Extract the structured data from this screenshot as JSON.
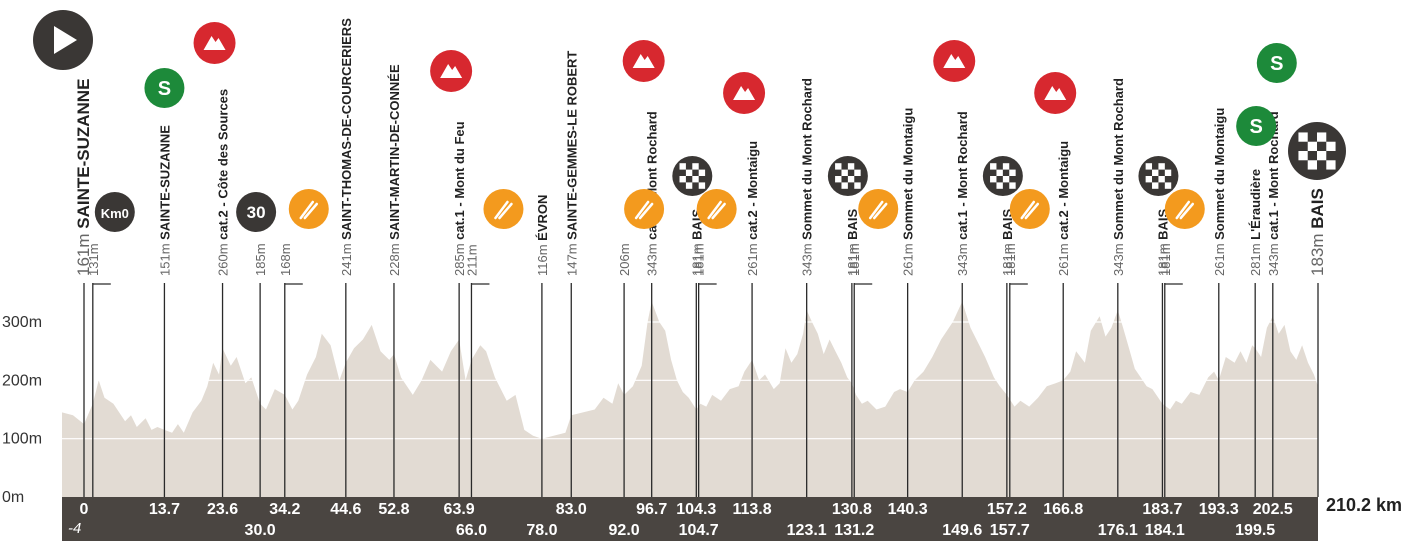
{
  "chart_data": {
    "type": "area",
    "ylim": [
      0,
      360
    ],
    "xlim": [
      -4,
      210.2
    ],
    "yticks": [
      {
        "v": 0,
        "label": "0m"
      },
      {
        "v": 100,
        "label": "100m"
      },
      {
        "v": 200,
        "label": "200m"
      },
      {
        "v": 300,
        "label": "300m"
      }
    ],
    "total_label": "210.2 km",
    "neutral_start_label": "-4",
    "profile": [
      [
        -4,
        145
      ],
      [
        -2,
        140
      ],
      [
        0,
        125
      ],
      [
        1.5,
        160
      ],
      [
        2.5,
        200
      ],
      [
        3.5,
        170
      ],
      [
        5,
        160
      ],
      [
        7,
        130
      ],
      [
        8,
        140
      ],
      [
        9,
        120
      ],
      [
        10.5,
        135
      ],
      [
        11.5,
        115
      ],
      [
        12.5,
        120
      ],
      [
        13.7,
        115
      ],
      [
        15,
        110
      ],
      [
        16,
        125
      ],
      [
        17,
        110
      ],
      [
        18.5,
        145
      ],
      [
        20,
        165
      ],
      [
        21,
        190
      ],
      [
        22,
        230
      ],
      [
        23,
        210
      ],
      [
        23.6,
        255
      ],
      [
        25,
        225
      ],
      [
        26,
        240
      ],
      [
        27.5,
        195
      ],
      [
        28.5,
        205
      ],
      [
        30,
        160
      ],
      [
        31,
        150
      ],
      [
        32.5,
        185
      ],
      [
        34.2,
        175
      ],
      [
        35.5,
        150
      ],
      [
        36.5,
        165
      ],
      [
        38,
        210
      ],
      [
        39.5,
        240
      ],
      [
        40.5,
        280
      ],
      [
        42,
        260
      ],
      [
        43.5,
        200
      ],
      [
        44.6,
        230
      ],
      [
        46,
        255
      ],
      [
        47.5,
        270
      ],
      [
        49,
        295
      ],
      [
        50.5,
        250
      ],
      [
        52,
        235
      ],
      [
        52.8,
        245
      ],
      [
        54,
        205
      ],
      [
        56,
        175
      ],
      [
        57.5,
        200
      ],
      [
        59,
        235
      ],
      [
        61,
        215
      ],
      [
        62.5,
        250
      ],
      [
        63.9,
        270
      ],
      [
        65,
        200
      ],
      [
        66,
        235
      ],
      [
        67.5,
        260
      ],
      [
        68.5,
        250
      ],
      [
        70,
        205
      ],
      [
        72,
        165
      ],
      [
        73.5,
        175
      ],
      [
        75,
        115
      ],
      [
        76.5,
        105
      ],
      [
        78,
        100
      ],
      [
        80,
        105
      ],
      [
        82,
        110
      ],
      [
        83,
        140
      ],
      [
        85,
        145
      ],
      [
        87,
        150
      ],
      [
        88.5,
        170
      ],
      [
        90,
        160
      ],
      [
        91,
        195
      ],
      [
        92,
        175
      ],
      [
        93.5,
        190
      ],
      [
        95,
        225
      ],
      [
        96,
        300
      ],
      [
        96.7,
        335
      ],
      [
        98,
        300
      ],
      [
        99,
        285
      ],
      [
        100,
        235
      ],
      [
        101,
        200
      ],
      [
        102,
        180
      ],
      [
        103,
        170
      ],
      [
        104.3,
        150
      ],
      [
        105,
        160
      ],
      [
        106,
        155
      ],
      [
        107,
        175
      ],
      [
        108.5,
        165
      ],
      [
        110,
        185
      ],
      [
        111.5,
        190
      ],
      [
        112.5,
        215
      ],
      [
        113.8,
        235
      ],
      [
        115,
        200
      ],
      [
        116,
        210
      ],
      [
        117.5,
        185
      ],
      [
        118.5,
        195
      ],
      [
        119.5,
        255
      ],
      [
        120.5,
        230
      ],
      [
        121.5,
        245
      ],
      [
        122.5,
        280
      ],
      [
        123.1,
        320
      ],
      [
        124,
        300
      ],
      [
        125,
        280
      ],
      [
        126,
        245
      ],
      [
        127,
        270
      ],
      [
        128,
        250
      ],
      [
        129,
        230
      ],
      [
        130,
        205
      ],
      [
        130.8,
        195
      ],
      [
        131.5,
        175
      ],
      [
        132.5,
        160
      ],
      [
        133.5,
        165
      ],
      [
        135,
        150
      ],
      [
        136.5,
        155
      ],
      [
        138,
        180
      ],
      [
        139,
        185
      ],
      [
        140.3,
        180
      ],
      [
        141.5,
        200
      ],
      [
        143,
        215
      ],
      [
        144.5,
        240
      ],
      [
        146,
        270
      ],
      [
        148,
        300
      ],
      [
        149.6,
        335
      ],
      [
        151,
        290
      ],
      [
        152.5,
        260
      ],
      [
        153.5,
        240
      ],
      [
        155,
        205
      ],
      [
        156,
        190
      ],
      [
        157.2,
        175
      ],
      [
        158.5,
        155
      ],
      [
        159.5,
        165
      ],
      [
        161,
        155
      ],
      [
        162.5,
        170
      ],
      [
        164,
        190
      ],
      [
        165.5,
        195
      ],
      [
        166.8,
        200
      ],
      [
        168,
        215
      ],
      [
        169,
        250
      ],
      [
        170.5,
        230
      ],
      [
        171.5,
        285
      ],
      [
        173,
        310
      ],
      [
        174,
        275
      ],
      [
        175,
        290
      ],
      [
        176.1,
        320
      ],
      [
        177,
        290
      ],
      [
        178,
        255
      ],
      [
        179,
        220
      ],
      [
        180,
        205
      ],
      [
        181,
        190
      ],
      [
        182,
        185
      ],
      [
        183.7,
        160
      ],
      [
        185,
        150
      ],
      [
        186,
        165
      ],
      [
        187,
        160
      ],
      [
        188.5,
        180
      ],
      [
        190,
        175
      ],
      [
        191.5,
        205
      ],
      [
        192.5,
        215
      ],
      [
        193.3,
        200
      ],
      [
        194.5,
        240
      ],
      [
        196,
        230
      ],
      [
        197,
        250
      ],
      [
        198,
        230
      ],
      [
        199,
        260
      ],
      [
        199.5,
        255
      ],
      [
        200.5,
        240
      ],
      [
        201.5,
        290
      ],
      [
        202.5,
        310
      ],
      [
        203.5,
        280
      ],
      [
        204.5,
        295
      ],
      [
        205.5,
        250
      ],
      [
        206.5,
        235
      ],
      [
        207.5,
        260
      ],
      [
        208.5,
        230
      ],
      [
        209.5,
        210
      ],
      [
        210.2,
        190
      ]
    ],
    "markers": [
      {
        "km": 0,
        "alt": "161m",
        "label": "SAINTE-SUZANNE",
        "icon": "start",
        "big": true
      },
      {
        "km": 1.5,
        "alt": "131m",
        "label": "",
        "icon": "km0",
        "badge": "Km0"
      },
      {
        "km": 13.7,
        "alt": "151m",
        "label": "SAINTE-SUZANNE",
        "icon": "sprint"
      },
      {
        "km": 23.6,
        "alt": "260m",
        "label": "cat.2 - Côte des Sources",
        "icon": "climb"
      },
      {
        "km": 30.0,
        "alt": "185m",
        "label": "",
        "icon": "km30",
        "badge": "30"
      },
      {
        "km": 34.2,
        "alt": "168m",
        "label": "",
        "icon": "feed"
      },
      {
        "km": 44.6,
        "alt": "241m",
        "label": "SAINT-THOMAS-DE-COURCERIERS",
        "icon": "none"
      },
      {
        "km": 52.8,
        "alt": "228m",
        "label": "SAINT-MARTIN-DE-CONNÉE",
        "icon": "none"
      },
      {
        "km": 63.9,
        "alt": "285m",
        "label": "cat.1 - Mont du Feu",
        "icon": "climb"
      },
      {
        "km": 66.0,
        "alt": "211m",
        "label": "",
        "icon": "feed"
      },
      {
        "km": 78.0,
        "alt": "116m",
        "label": "ÉVRON",
        "icon": "none"
      },
      {
        "km": 83.0,
        "alt": "147m",
        "label": "SAINTE-GEMMES-LE ROBERT",
        "icon": "none"
      },
      {
        "km": 92.0,
        "alt": "206m",
        "label": "",
        "icon": "feed"
      },
      {
        "km": 96.7,
        "alt": "343m",
        "label": "cat.1 - Mont Rochard",
        "icon": "climb"
      },
      {
        "km": 104.3,
        "alt": "181m",
        "label": "BAIS",
        "icon": "finish"
      },
      {
        "km": 104.7,
        "alt": "181m",
        "label": "",
        "icon": "feed"
      },
      {
        "km": 113.8,
        "alt": "261m",
        "label": "cat.2 - Montaigu",
        "icon": "climb"
      },
      {
        "km": 123.1,
        "alt": "343m",
        "label": "Sommet du Mont Rochard",
        "icon": "none"
      },
      {
        "km": 130.8,
        "alt": "181m",
        "label": "BAIS",
        "icon": "finish"
      },
      {
        "km": 131.2,
        "alt": "181m",
        "label": "",
        "icon": "feed"
      },
      {
        "km": 140.3,
        "alt": "261m",
        "label": "Sommet du Montaigu",
        "icon": "none"
      },
      {
        "km": 149.6,
        "alt": "343m",
        "label": "cat.1 - Mont Rochard",
        "icon": "climb"
      },
      {
        "km": 157.2,
        "alt": "181m",
        "label": "BAIS",
        "icon": "finish"
      },
      {
        "km": 157.7,
        "alt": "181m",
        "label": "",
        "icon": "feed"
      },
      {
        "km": 166.8,
        "alt": "261m",
        "label": "cat.2 - Montaigu",
        "icon": "climb"
      },
      {
        "km": 176.1,
        "alt": "343m",
        "label": "Sommet du Mont Rochard",
        "icon": "none"
      },
      {
        "km": 183.7,
        "alt": "181m",
        "label": "BAIS",
        "icon": "finish"
      },
      {
        "km": 184.1,
        "alt": "181m",
        "label": "",
        "icon": "feed"
      },
      {
        "km": 193.3,
        "alt": "261m",
        "label": "Sommet du Montaigu",
        "icon": "none"
      },
      {
        "km": 199.5,
        "alt": "281m",
        "label": "L'Éraudière",
        "icon": "sprint"
      },
      {
        "km": 202.5,
        "alt": "343m",
        "label": "cat.1 - Mont Rochard",
        "icon": "sprint2"
      },
      {
        "km": 210.2,
        "alt": "183m",
        "label": "BAIS",
        "icon": "finishbig",
        "big": true
      }
    ],
    "km_labels_top": [
      "0",
      "13.7",
      "23.6",
      "34.2",
      "44.6",
      "52.8",
      "63.9",
      "83.0",
      "96.7",
      "104.3",
      "113.8",
      "130.8",
      "140.3",
      "157.2",
      "166.8",
      "183.7",
      "193.3",
      "202.5"
    ],
    "km_labels_bottom": [
      "30.0",
      "66.0",
      "78.0",
      "92.0",
      "104.7",
      "123.1",
      "131.2",
      "149.6",
      "157.7",
      "176.1",
      "184.1",
      "199.5"
    ],
    "colors": {
      "area": "#e2dbd3",
      "band": "#4a4541",
      "climb": "#d7282f",
      "sprint": "#1d8a3a",
      "feed": "#f39a1e",
      "dark": "#3a3735"
    }
  }
}
